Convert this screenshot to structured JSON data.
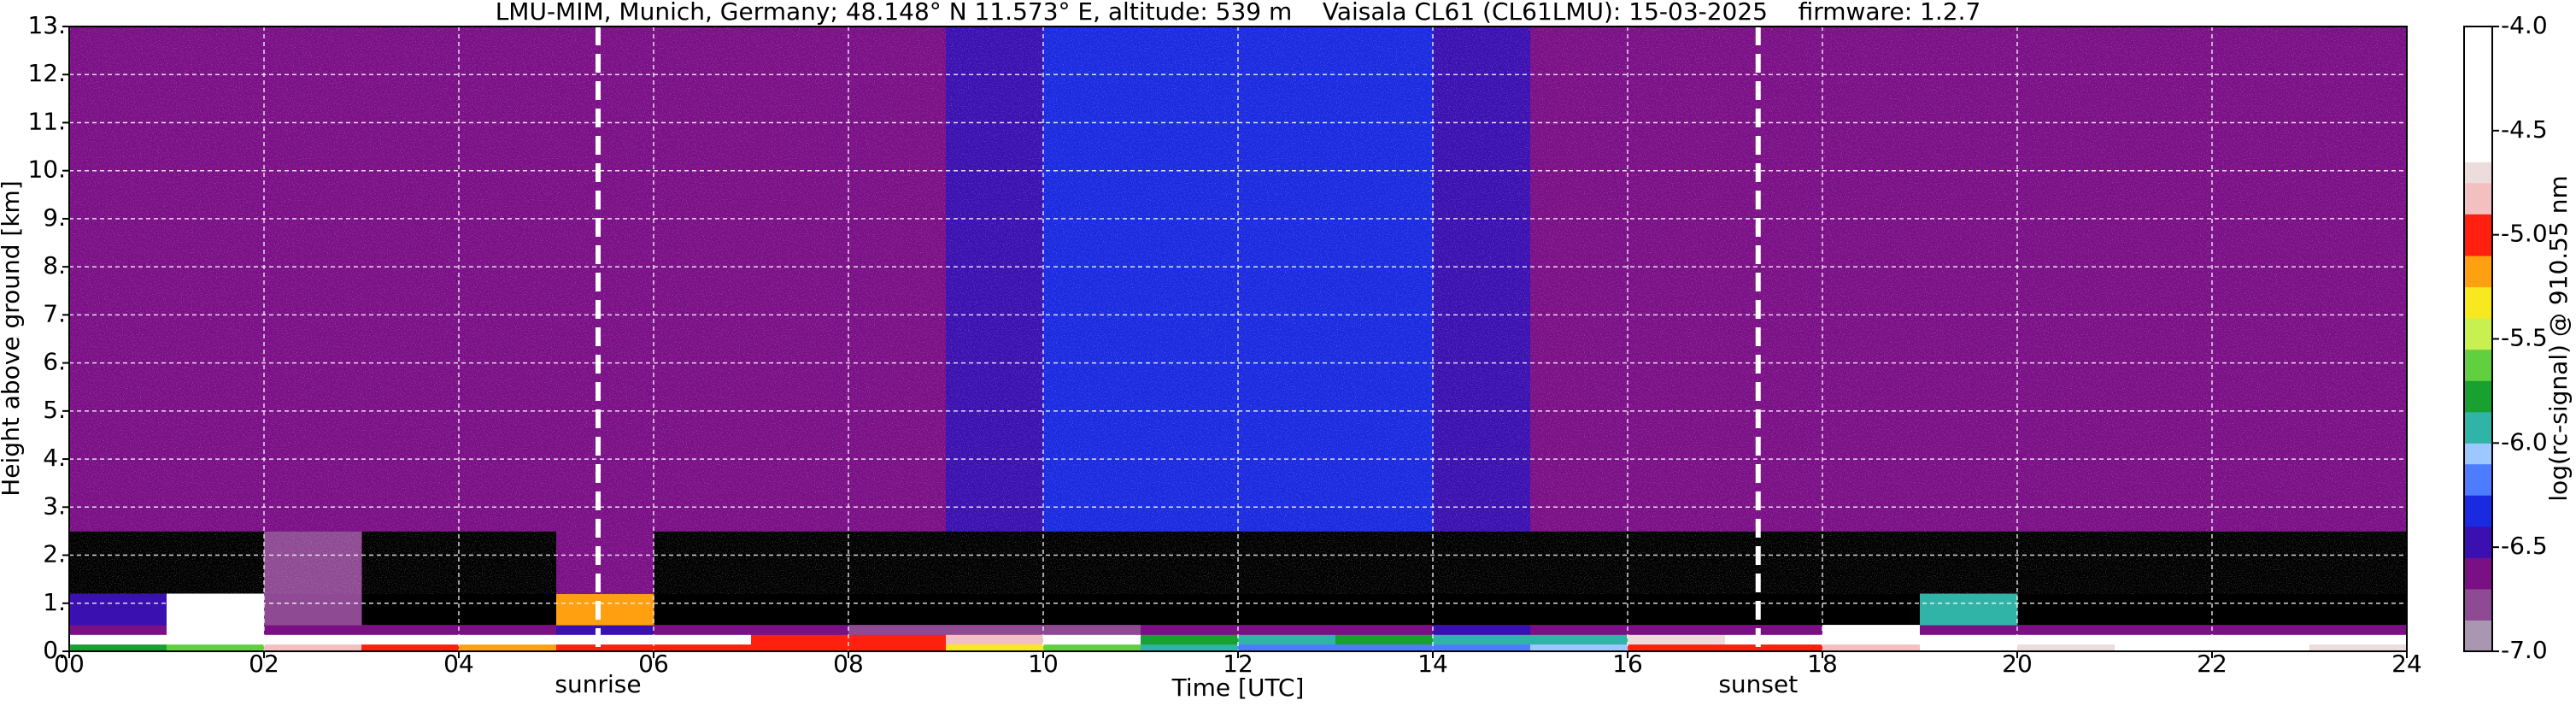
{
  "chart_data": {
    "type": "heatmap",
    "title": "LMU-MIM, Munich, Germany; 48.148° N 11.573° E, altitude: 539 m    Vaisala CL61 (CL61LMU): 15-03-2025    firmware: 1.2.7",
    "x_label": "Time [UTC]",
    "y_label": "Height above ground [km]",
    "colorbar_label": "log(rc-signal) @ 910.55 nm",
    "xlim": [
      0,
      24
    ],
    "ylim": [
      0,
      13
    ],
    "clim": [
      -7.0,
      -4.0
    ],
    "grid": true,
    "xticks": [
      {
        "value": 0,
        "label": "00"
      },
      {
        "value": 2,
        "label": "02"
      },
      {
        "value": 4,
        "label": "04"
      },
      {
        "value": 6,
        "label": "06"
      },
      {
        "value": 8,
        "label": "08"
      },
      {
        "value": 10,
        "label": "10"
      },
      {
        "value": 12,
        "label": "12"
      },
      {
        "value": 14,
        "label": "14"
      },
      {
        "value": 16,
        "label": "16"
      },
      {
        "value": 18,
        "label": "18"
      },
      {
        "value": 20,
        "label": "20"
      },
      {
        "value": 22,
        "label": "22"
      },
      {
        "value": 24,
        "label": "24"
      }
    ],
    "yticks": [
      {
        "value": 0,
        "label": "0."
      },
      {
        "value": 1,
        "label": "1."
      },
      {
        "value": 2,
        "label": "2."
      },
      {
        "value": 3,
        "label": "3."
      },
      {
        "value": 4,
        "label": "4."
      },
      {
        "value": 5,
        "label": "5."
      },
      {
        "value": 6,
        "label": "6."
      },
      {
        "value": 7,
        "label": "7."
      },
      {
        "value": 8,
        "label": "8."
      },
      {
        "value": 9,
        "label": "9."
      },
      {
        "value": 10,
        "label": "10."
      },
      {
        "value": 11,
        "label": "11."
      },
      {
        "value": 12,
        "label": "12."
      },
      {
        "value": 13,
        "label": "13."
      }
    ],
    "cticks": [
      {
        "value": -4.0,
        "label": "-4.0"
      },
      {
        "value": -4.5,
        "label": "-4.5"
      },
      {
        "value": -5.0,
        "label": "-5.0"
      },
      {
        "value": -5.5,
        "label": "-5.5"
      },
      {
        "value": -6.0,
        "label": "-6.0"
      },
      {
        "value": -6.5,
        "label": "-6.5"
      },
      {
        "value": -7.0,
        "label": "-7.0"
      }
    ],
    "colorscale": [
      {
        "value": -7.0,
        "color": "#a996b0"
      },
      {
        "value": -6.85,
        "color": "#8e4a92"
      },
      {
        "value": -6.7,
        "color": "#7a0f86"
      },
      {
        "value": -6.55,
        "color": "#3a10b0"
      },
      {
        "value": -6.4,
        "color": "#1a2ae0"
      },
      {
        "value": -6.25,
        "color": "#4d7cff"
      },
      {
        "value": -6.1,
        "color": "#9cc8ff"
      },
      {
        "value": -6.0,
        "color": "#30b4a8"
      },
      {
        "value": -5.85,
        "color": "#18a030"
      },
      {
        "value": -5.7,
        "color": "#60d040"
      },
      {
        "value": -5.55,
        "color": "#c8f050"
      },
      {
        "value": -5.4,
        "color": "#f8e820"
      },
      {
        "value": -5.25,
        "color": "#ffa010"
      },
      {
        "value": -5.1,
        "color": "#ff2010"
      },
      {
        "value": -4.9,
        "color": "#f2c0c0"
      },
      {
        "value": -4.75,
        "color": "#ecdcdc"
      },
      {
        "value": -4.65,
        "color": "#ffffff"
      }
    ],
    "x_bins": [
      0,
      1,
      2,
      3,
      4,
      5,
      6,
      7,
      8,
      9,
      10,
      11,
      12,
      13,
      14,
      15,
      16,
      17,
      18,
      19,
      20,
      21,
      22,
      23,
      24
    ],
    "y_bins": [
      0,
      0.15,
      0.35,
      0.55,
      1.2,
      2.5,
      13
    ],
    "values": [
      [
        -5.8,
        -5.6,
        -4.8,
        -5.0,
        -5.2,
        -5.0,
        -5.0,
        -5.0,
        -5.0,
        -5.3,
        -5.6,
        -6.0,
        -6.2,
        -6.2,
        -6.2,
        -6.1,
        -5.0,
        -5.0,
        -4.8,
        -4.6,
        -4.7,
        -4.6,
        -4.6,
        -4.7
      ],
      [
        -4.2,
        -4.1,
        -4.3,
        -4.3,
        -4.2,
        -4.2,
        -4.3,
        -5.0,
        -5.0,
        -4.9,
        -4.6,
        -5.8,
        -6.0,
        -5.8,
        -6.0,
        -5.9,
        -4.7,
        -4.3,
        -4.2,
        -4.2,
        -4.2,
        -4.2,
        -4.2,
        -4.2
      ],
      [
        -6.7,
        -4.3,
        -6.7,
        -6.7,
        -6.7,
        -6.5,
        -6.7,
        -6.7,
        -6.8,
        -6.8,
        -6.8,
        -6.6,
        -6.7,
        -6.6,
        -6.5,
        -6.6,
        -6.7,
        -6.7,
        -4.5,
        -6.6,
        -6.7,
        -6.7,
        -6.7,
        -6.7
      ],
      [
        -6.5,
        -4.5,
        -6.8,
        null,
        null,
        -5.2,
        null,
        null,
        null,
        null,
        null,
        null,
        null,
        null,
        null,
        null,
        null,
        null,
        null,
        -6.0,
        null,
        null,
        null,
        null
      ],
      [
        null,
        null,
        -6.8,
        null,
        null,
        -6.6,
        null,
        null,
        null,
        null,
        null,
        null,
        null,
        null,
        null,
        null,
        null,
        null,
        null,
        null,
        null,
        null,
        null,
        null
      ],
      [
        -6.6,
        -6.6,
        -6.6,
        -6.6,
        -6.6,
        -6.6,
        -6.6,
        -6.6,
        -6.6,
        -6.5,
        -6.4,
        -6.4,
        -6.4,
        -6.4,
        -6.5,
        -6.6,
        -6.6,
        -6.6,
        -6.6,
        -6.6,
        -6.6,
        -6.6,
        -6.6,
        -6.6
      ]
    ],
    "vlines": [
      {
        "x": 5.43,
        "label": "sunrise"
      },
      {
        "x": 17.34,
        "label": "sunset"
      }
    ]
  }
}
